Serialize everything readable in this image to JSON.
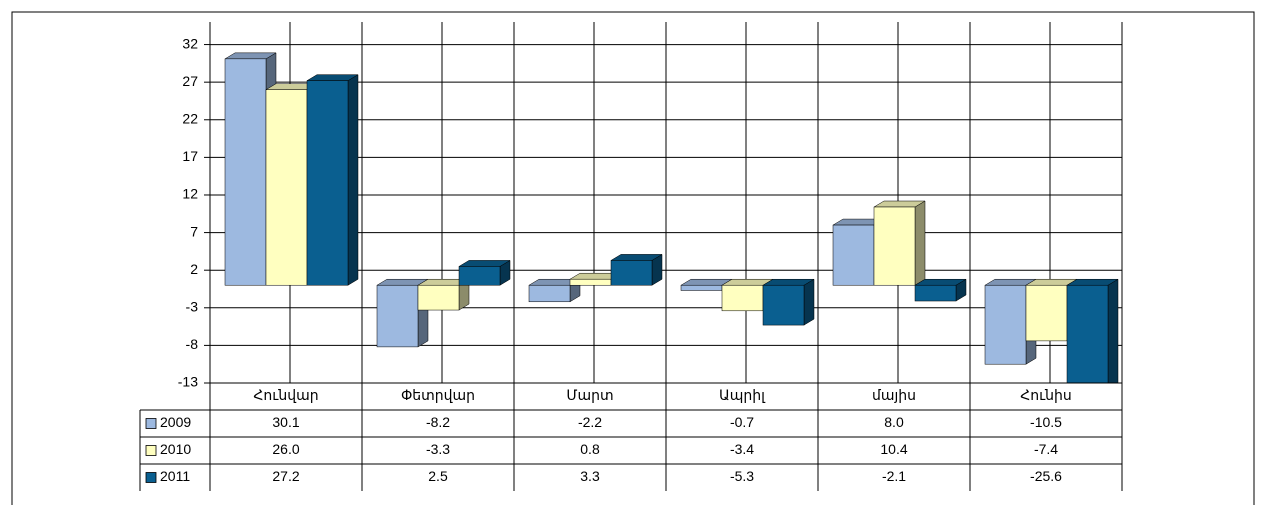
{
  "chart_data": {
    "type": "bar",
    "categories": [
      "Հունվար",
      "Փետրվար",
      "Մարտ",
      "Ապրիլ",
      "մայիս",
      "Հունիս"
    ],
    "series": [
      {
        "name": "2009",
        "color": "#9db9e0",
        "values": [
          30.1,
          -8.2,
          -2.2,
          -0.7,
          8,
          -10.5
        ],
        "value_labels": [
          "30.1",
          "-8.2",
          "-2.2",
          "-0.7",
          "8.0",
          "-10.5"
        ]
      },
      {
        "name": "2010",
        "color": "#ffffc0",
        "values": [
          26,
          -3.3,
          0.8,
          -3.4,
          10.4,
          -7.4
        ],
        "value_labels": [
          "26.0",
          "-3.3",
          "0.8",
          "-3.4",
          "10.4",
          "-7.4"
        ]
      },
      {
        "name": "2011",
        "color": "#0a5f90",
        "values": [
          27.2,
          2.5,
          3.3,
          -5.3,
          -2.1,
          -25.6
        ],
        "value_labels": [
          "27.2",
          "2.5",
          "3.3",
          "-5.3",
          "-2.1",
          "-25.6"
        ]
      }
    ],
    "ylim": [
      -13,
      35
    ],
    "yticks": [
      -13,
      -8,
      -3,
      2,
      7,
      12,
      17,
      22,
      27,
      32
    ],
    "grid": true
  }
}
